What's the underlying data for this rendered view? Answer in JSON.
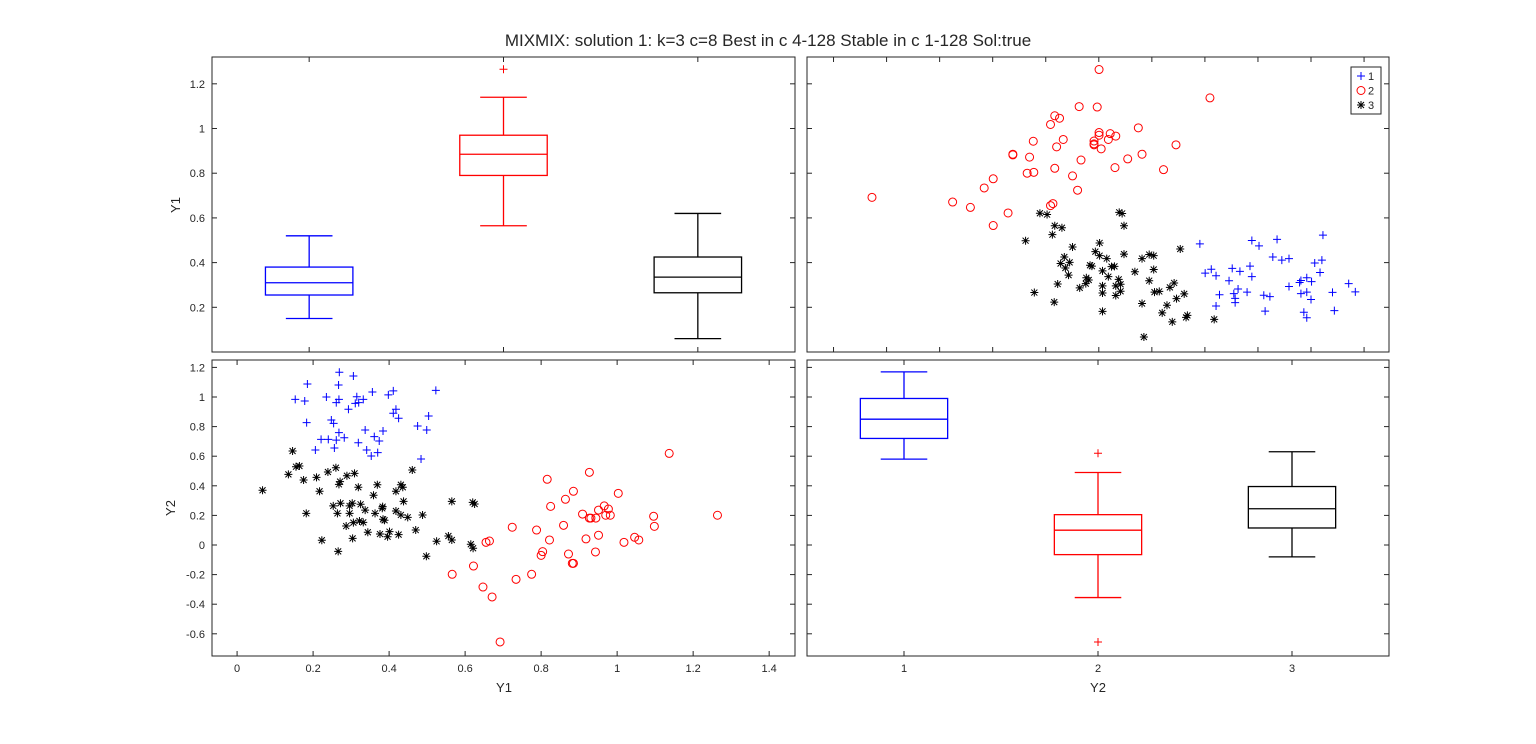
{
  "chart_data": {
    "title": "MIXMIX: solution 1: k=3 c=8 Best in c 4-128 Stable in c 1-128 Sol:true",
    "colors": {
      "1": "#0000ff",
      "2": "#ff0000",
      "3": "#000000"
    },
    "legend": {
      "placement": "top-right",
      "entries": [
        {
          "label": "1",
          "marker": "plus"
        },
        {
          "label": "2",
          "marker": "circle"
        },
        {
          "label": "3",
          "marker": "asterisk"
        }
      ]
    },
    "variables": [
      "Y1",
      "Y2"
    ],
    "panels": [
      {
        "id": "Y1-box",
        "type": "box",
        "ylabel": "Y1",
        "xlabel": "",
        "ylim": [
          0.0,
          1.32
        ],
        "xlim": [
          0.5,
          3.5
        ],
        "yticks": [
          0.2,
          0.4,
          0.6,
          0.8,
          1,
          1.2
        ],
        "show_ytick_labels": true,
        "show_xtick_labels": false,
        "boxes": [
          {
            "group": "1",
            "q1": 0.255,
            "median": 0.31,
            "q3": 0.38,
            "whisker_low": 0.15,
            "whisker_high": 0.52,
            "outliers": []
          },
          {
            "group": "2",
            "q1": 0.79,
            "median": 0.885,
            "q3": 0.97,
            "whisker_low": 0.565,
            "whisker_high": 1.14,
            "outliers": [
              1.265
            ]
          },
          {
            "group": "3",
            "q1": 0.265,
            "median": 0.335,
            "q3": 0.425,
            "whisker_low": 0.06,
            "whisker_high": 0.62,
            "outliers": []
          }
        ]
      },
      {
        "id": "Y2-vs-Y1-top",
        "type": "scatter",
        "x_var": "Y2",
        "y_var": "Y1",
        "xlim": [
          -0.9,
          1.294
        ],
        "ylim": [
          0.0,
          1.32
        ],
        "xticks": [
          -0.8,
          -0.6,
          -0.4,
          -0.2,
          0,
          0.2,
          0.4,
          0.6,
          0.8,
          1,
          1.2
        ],
        "yticks": [
          0.2,
          0.4,
          0.6,
          0.8,
          1,
          1.2
        ],
        "legend": true
      },
      {
        "id": "Y1-vs-Y2-bottom",
        "type": "scatter",
        "x_var": "Y1",
        "y_var": "Y2",
        "xlabel": "Y1",
        "ylabel": "Y2",
        "xlim": [
          -0.066,
          1.468
        ],
        "ylim": [
          -0.75,
          1.25
        ],
        "xticks": [
          0,
          0.2,
          0.4,
          0.6,
          0.8,
          1,
          1.2,
          1.4
        ],
        "yticks": [
          -0.6,
          -0.4,
          -0.2,
          0,
          0.2,
          0.4,
          0.6,
          0.8,
          1,
          1.2
        ],
        "show_xtick_labels": true,
        "show_ytick_labels": true
      },
      {
        "id": "Y2-box",
        "type": "box",
        "xlabel": "Y2",
        "ylim": [
          -0.75,
          1.25
        ],
        "xlim": [
          0.5,
          3.5
        ],
        "xticks": [
          1,
          2,
          3
        ],
        "yticks": [
          -0.6,
          -0.4,
          -0.2,
          0,
          0.2,
          0.4,
          0.6,
          0.8,
          1,
          1.2
        ],
        "show_xtick_labels": true,
        "show_ytick_labels": false,
        "boxes": [
          {
            "group": "1",
            "q1": 0.72,
            "median": 0.85,
            "q3": 0.99,
            "whisker_low": 0.58,
            "whisker_high": 1.17,
            "outliers": []
          },
          {
            "group": "2",
            "q1": -0.065,
            "median": 0.1,
            "q3": 0.205,
            "whisker_low": -0.355,
            "whisker_high": 0.49,
            "outliers": [
              0.62,
              -0.655
            ]
          },
          {
            "group": "3",
            "q1": 0.115,
            "median": 0.245,
            "q3": 0.395,
            "whisker_low": -0.08,
            "whisker_high": 0.63,
            "outliers": []
          }
        ]
      }
    ],
    "points": {
      "1": [
        [
          0.269,
          1.167
        ],
        [
          0.306,
          1.142
        ],
        [
          0.185,
          1.088
        ],
        [
          0.267,
          1.081
        ],
        [
          0.153,
          0.984
        ],
        [
          0.178,
          0.973
        ],
        [
          0.235,
          1.0
        ],
        [
          0.268,
          0.984
        ],
        [
          0.261,
          0.962
        ],
        [
          0.315,
          1.002
        ],
        [
          0.332,
          0.984
        ],
        [
          0.311,
          0.957
        ],
        [
          0.32,
          0.962
        ],
        [
          0.293,
          0.917
        ],
        [
          0.356,
          1.034
        ],
        [
          0.398,
          1.014
        ],
        [
          0.411,
          1.041
        ],
        [
          0.523,
          1.045
        ],
        [
          0.418,
          0.917
        ],
        [
          0.411,
          0.89
        ],
        [
          0.425,
          0.856
        ],
        [
          0.183,
          0.827
        ],
        [
          0.248,
          0.845
        ],
        [
          0.254,
          0.822
        ],
        [
          0.504,
          0.872
        ],
        [
          0.475,
          0.804
        ],
        [
          0.499,
          0.777
        ],
        [
          0.337,
          0.777
        ],
        [
          0.384,
          0.77
        ],
        [
          0.268,
          0.759
        ],
        [
          0.282,
          0.725
        ],
        [
          0.221,
          0.714
        ],
        [
          0.24,
          0.714
        ],
        [
          0.261,
          0.709
        ],
        [
          0.361,
          0.732
        ],
        [
          0.374,
          0.703
        ],
        [
          0.319,
          0.691
        ],
        [
          0.256,
          0.655
        ],
        [
          0.206,
          0.642
        ],
        [
          0.341,
          0.642
        ],
        [
          0.37,
          0.624
        ],
        [
          0.353,
          0.601
        ],
        [
          0.484,
          0.581
        ]
      ],
      "2": [
        [
          1.137,
          0.619
        ],
        [
          0.927,
          0.491
        ],
        [
          0.816,
          0.444
        ],
        [
          0.885,
          0.363
        ],
        [
          1.003,
          0.349
        ],
        [
          0.864,
          0.309
        ],
        [
          0.825,
          0.261
        ],
        [
          0.966,
          0.264
        ],
        [
          0.977,
          0.243
        ],
        [
          0.951,
          0.236
        ],
        [
          0.909,
          0.209
        ],
        [
          0.927,
          0.182
        ],
        [
          0.931,
          0.182
        ],
        [
          0.944,
          0.182
        ],
        [
          0.97,
          0.201
        ],
        [
          0.982,
          0.201
        ],
        [
          1.096,
          0.194
        ],
        [
          1.264,
          0.201
        ],
        [
          1.098,
          0.126
        ],
        [
          0.724,
          0.12
        ],
        [
          0.788,
          0.101
        ],
        [
          0.859,
          0.133
        ],
        [
          0.822,
          0.034
        ],
        [
          0.918,
          0.041
        ],
        [
          0.951,
          0.066
        ],
        [
          1.018,
          0.018
        ],
        [
          1.046,
          0.052
        ],
        [
          1.057,
          0.034
        ],
        [
          0.655,
          0.018
        ],
        [
          0.664,
          0.027
        ],
        [
          0.804,
          -0.045
        ],
        [
          0.8,
          -0.07
        ],
        [
          0.872,
          -0.061
        ],
        [
          0.943,
          -0.047
        ],
        [
          0.882,
          -0.124
        ],
        [
          0.885,
          -0.124
        ],
        [
          0.622,
          -0.142
        ],
        [
          0.566,
          -0.198
        ],
        [
          0.775,
          -0.198
        ],
        [
          0.734,
          -0.232
        ],
        [
          0.647,
          -0.284
        ],
        [
          0.671,
          -0.351
        ],
        [
          0.692,
          -0.655
        ]
      ],
      "3": [
        [
          0.146,
          0.635
        ],
        [
          0.155,
          0.529
        ],
        [
          0.164,
          0.534
        ],
        [
          0.135,
          0.477
        ],
        [
          0.175,
          0.439
        ],
        [
          0.209,
          0.457
        ],
        [
          0.239,
          0.493
        ],
        [
          0.26,
          0.522
        ],
        [
          0.289,
          0.468
        ],
        [
          0.309,
          0.484
        ],
        [
          0.271,
          0.428
        ],
        [
          0.268,
          0.41
        ],
        [
          0.461,
          0.507
        ],
        [
          0.067,
          0.37
        ],
        [
          0.217,
          0.363
        ],
        [
          0.319,
          0.39
        ],
        [
          0.369,
          0.407
        ],
        [
          0.359,
          0.336
        ],
        [
          0.431,
          0.407
        ],
        [
          0.436,
          0.39
        ],
        [
          0.418,
          0.363
        ],
        [
          0.438,
          0.295
        ],
        [
          0.253,
          0.264
        ],
        [
          0.272,
          0.282
        ],
        [
          0.296,
          0.264
        ],
        [
          0.303,
          0.282
        ],
        [
          0.325,
          0.275
        ],
        [
          0.337,
          0.236
        ],
        [
          0.383,
          0.259
        ],
        [
          0.382,
          0.248
        ],
        [
          0.264,
          0.214
        ],
        [
          0.296,
          0.214
        ],
        [
          0.363,
          0.214
        ],
        [
          0.418,
          0.23
        ],
        [
          0.431,
          0.203
        ],
        [
          0.449,
          0.187
        ],
        [
          0.488,
          0.203
        ],
        [
          0.182,
          0.214
        ],
        [
          0.287,
          0.128
        ],
        [
          0.306,
          0.151
        ],
        [
          0.322,
          0.162
        ],
        [
          0.332,
          0.153
        ],
        [
          0.384,
          0.174
        ],
        [
          0.388,
          0.167
        ],
        [
          0.344,
          0.086
        ],
        [
          0.376,
          0.074
        ],
        [
          0.396,
          0.056
        ],
        [
          0.401,
          0.09
        ],
        [
          0.425,
          0.07
        ],
        [
          0.47,
          0.101
        ],
        [
          0.565,
          0.295
        ],
        [
          0.62,
          0.288
        ],
        [
          0.625,
          0.277
        ],
        [
          0.223,
          0.032
        ],
        [
          0.304,
          0.045
        ],
        [
          0.266,
          -0.043
        ],
        [
          0.525,
          0.025
        ],
        [
          0.556,
          0.061
        ],
        [
          0.565,
          0.034
        ],
        [
          0.615,
          0.005
        ],
        [
          0.621,
          -0.022
        ],
        [
          0.498,
          -0.076
        ]
      ]
    }
  }
}
